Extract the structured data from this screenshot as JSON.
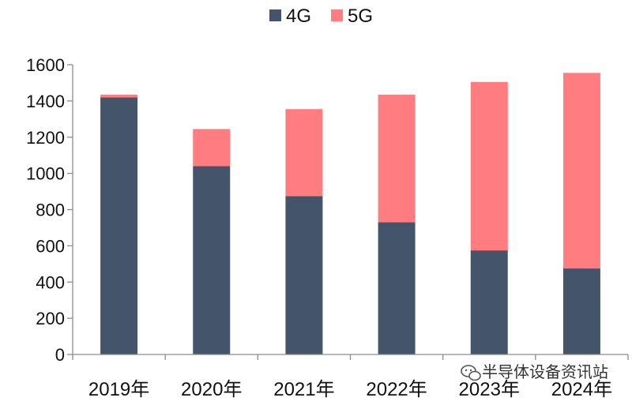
{
  "chart_data": {
    "type": "bar",
    "stacked": true,
    "categories": [
      "2019年",
      "2020年",
      "2021年",
      "2022年",
      "2023年",
      "2024年"
    ],
    "series": [
      {
        "name": "4G",
        "color": "#44546a",
        "values": [
          1420,
          1040,
          875,
          730,
          575,
          475
        ]
      },
      {
        "name": "5G",
        "color": "#ff7c80",
        "values": [
          15,
          205,
          480,
          705,
          930,
          1080
        ]
      }
    ],
    "ylim": [
      0,
      1600
    ],
    "yticks": [
      0,
      200,
      400,
      600,
      800,
      1000,
      1200,
      1400,
      1600
    ],
    "grid": false,
    "legend": "top-center"
  },
  "watermark": {
    "text": "半导体设备资讯站",
    "icon": "wechat-icon"
  }
}
